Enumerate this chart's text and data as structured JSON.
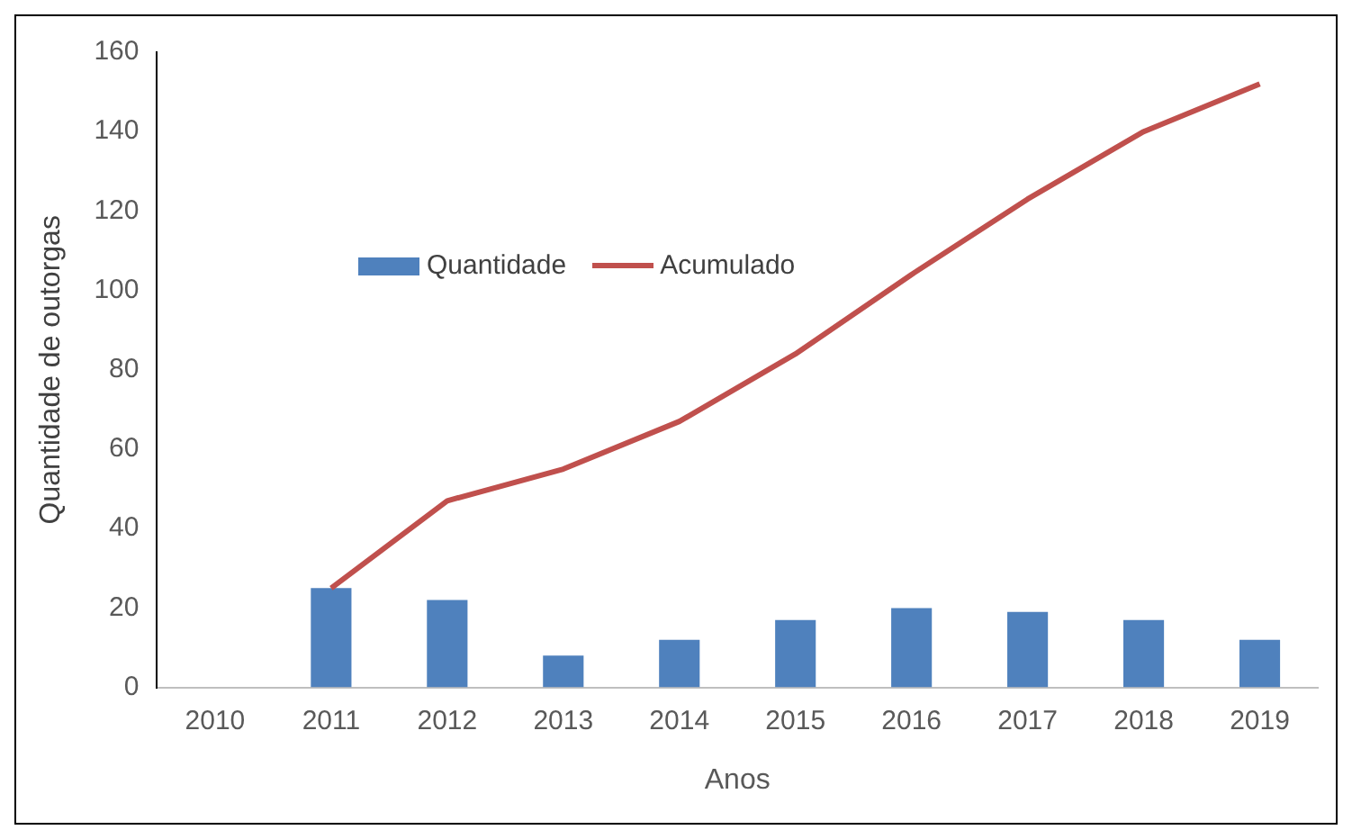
{
  "chart_data": {
    "type": "bar",
    "xlabel": "Anos",
    "ylabel": "Quantidade de outorgas",
    "categories": [
      "2010",
      "2011",
      "2012",
      "2013",
      "2014",
      "2015",
      "2016",
      "2017",
      "2018",
      "2019"
    ],
    "series": [
      {
        "name": "Quantidade",
        "color": "#4f81bd",
        "values": [
          null,
          25,
          22,
          8,
          12,
          17,
          20,
          19,
          17,
          12
        ]
      },
      {
        "name": "Acumulado",
        "type": "line",
        "color": "#c0504d",
        "values": [
          null,
          25,
          47,
          55,
          67,
          84,
          104,
          123,
          140,
          152
        ]
      }
    ],
    "ylim": [
      0,
      160
    ],
    "yticks": [
      0,
      20,
      40,
      60,
      80,
      100,
      120,
      140,
      160
    ],
    "grid": false,
    "legend": "top left",
    "marker": "none",
    "line_style": "solid"
  }
}
